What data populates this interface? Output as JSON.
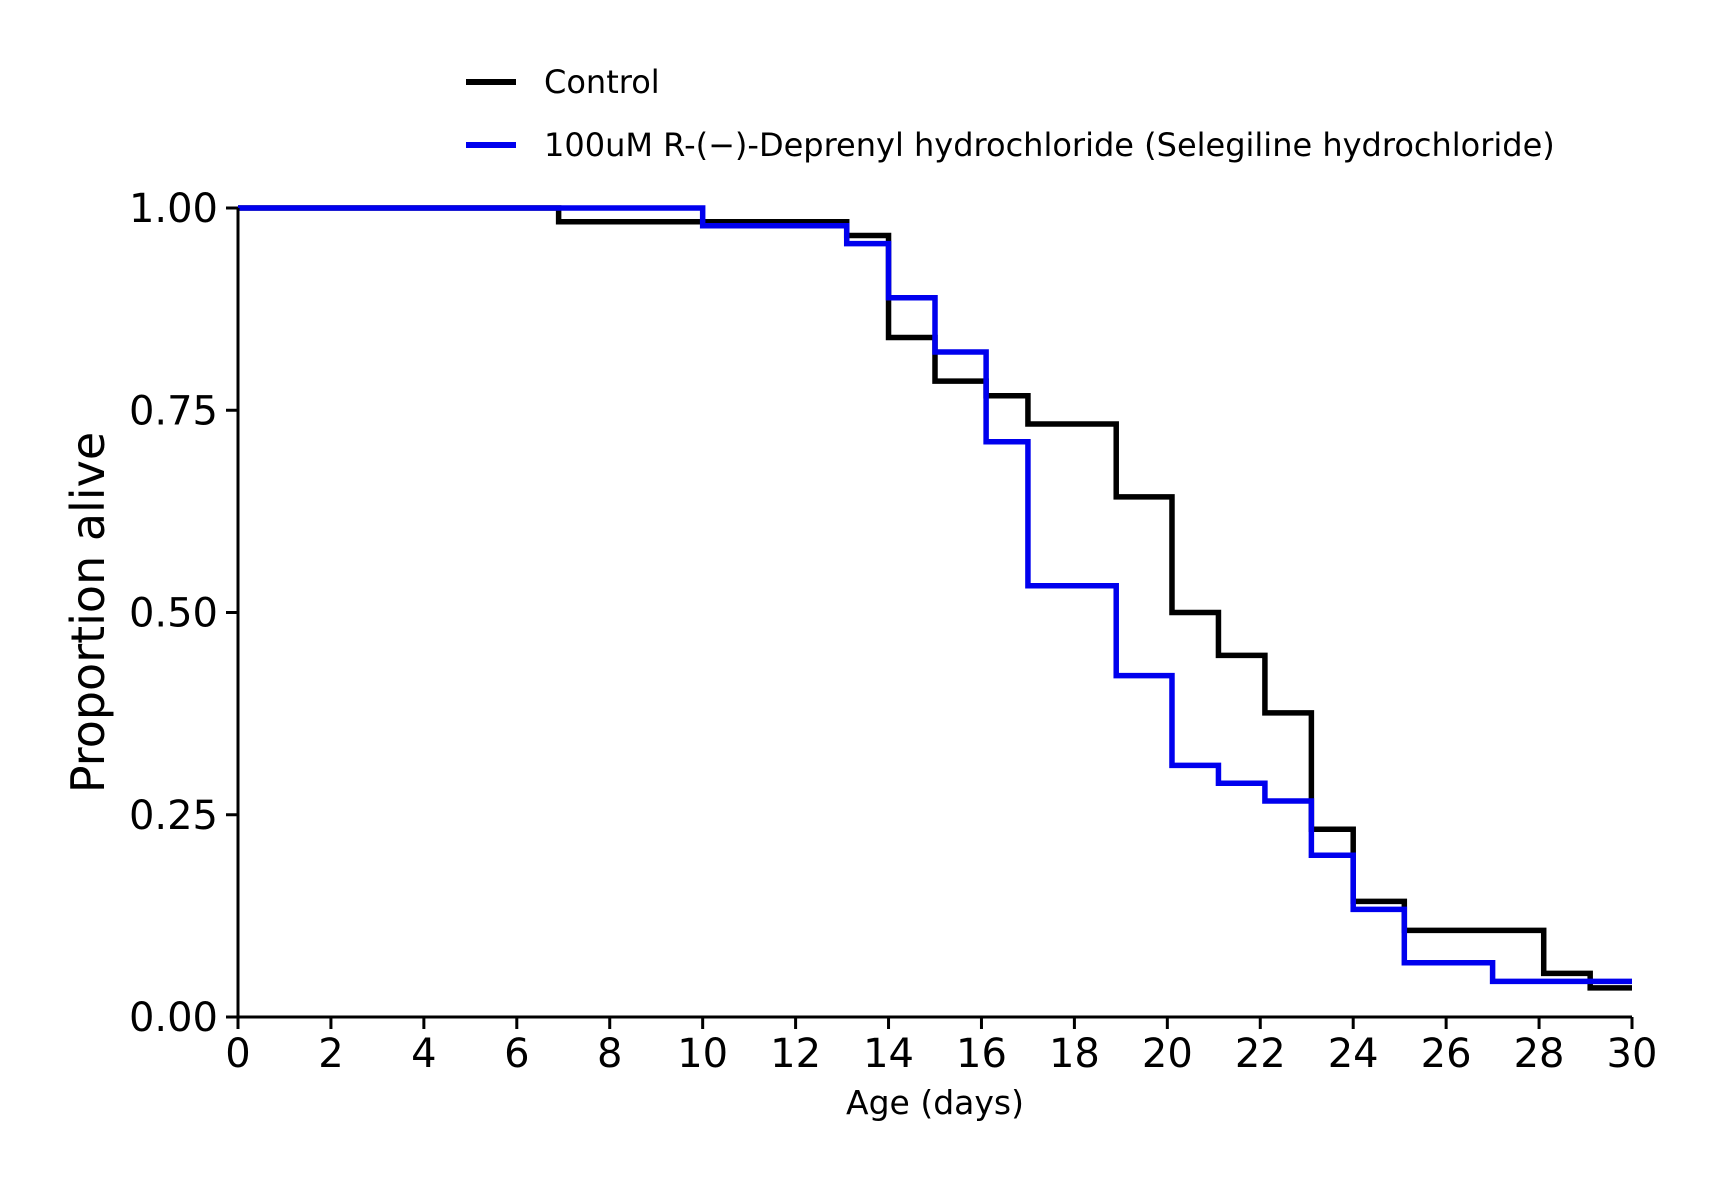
{
  "chart_data": {
    "type": "line",
    "step": true,
    "title": "",
    "xlabel": "Age (days)",
    "ylabel": "Proportion alive",
    "xlim": [
      0,
      30
    ],
    "ylim": [
      0,
      1
    ],
    "x_ticks": [
      0,
      2,
      4,
      6,
      8,
      10,
      12,
      14,
      16,
      18,
      20,
      22,
      24,
      26,
      28,
      30
    ],
    "x_tick_labels": [
      "0",
      "2",
      "4",
      "6",
      "8",
      "10",
      "12",
      "14",
      "16",
      "18",
      "20",
      "22",
      "24",
      "26",
      "28",
      "30"
    ],
    "y_ticks": [
      0,
      0.25,
      0.5,
      0.75,
      1.0
    ],
    "y_tick_labels": [
      "0.00",
      "0.25",
      "0.50",
      "0.75",
      "1.00"
    ],
    "grid": false,
    "legend_position": "top",
    "series": [
      {
        "name": "Control",
        "color": "#000000",
        "points": [
          {
            "x": 0,
            "y": 1.0
          },
          {
            "x": 6.9,
            "y": 0.983
          },
          {
            "x": 13.1,
            "y": 0.966
          },
          {
            "x": 14.0,
            "y": 0.84
          },
          {
            "x": 15.0,
            "y": 0.786
          },
          {
            "x": 16.1,
            "y": 0.768
          },
          {
            "x": 17.0,
            "y": 0.733
          },
          {
            "x": 18.9,
            "y": 0.643
          },
          {
            "x": 20.1,
            "y": 0.5
          },
          {
            "x": 21.1,
            "y": 0.447
          },
          {
            "x": 22.1,
            "y": 0.376
          },
          {
            "x": 23.1,
            "y": 0.232
          },
          {
            "x": 24.0,
            "y": 0.143
          },
          {
            "x": 25.1,
            "y": 0.107
          },
          {
            "x": 28.1,
            "y": 0.054
          },
          {
            "x": 29.1,
            "y": 0.036
          },
          {
            "x": 30.0,
            "y": 0.036
          }
        ]
      },
      {
        "name": "100uM R-(−)-Deprenyl hydrochloride (Selegiline hydrochloride)",
        "color": "#0000ee",
        "points": [
          {
            "x": 0,
            "y": 1.0
          },
          {
            "x": 10.0,
            "y": 0.978
          },
          {
            "x": 13.1,
            "y": 0.956
          },
          {
            "x": 14.0,
            "y": 0.889
          },
          {
            "x": 15.0,
            "y": 0.822
          },
          {
            "x": 16.1,
            "y": 0.711
          },
          {
            "x": 17.0,
            "y": 0.533
          },
          {
            "x": 18.9,
            "y": 0.422
          },
          {
            "x": 20.1,
            "y": 0.311
          },
          {
            "x": 21.1,
            "y": 0.289
          },
          {
            "x": 22.1,
            "y": 0.267
          },
          {
            "x": 23.1,
            "y": 0.2
          },
          {
            "x": 24.0,
            "y": 0.133
          },
          {
            "x": 25.1,
            "y": 0.067
          },
          {
            "x": 27.0,
            "y": 0.044
          },
          {
            "x": 30.0,
            "y": 0.044
          }
        ]
      }
    ]
  }
}
